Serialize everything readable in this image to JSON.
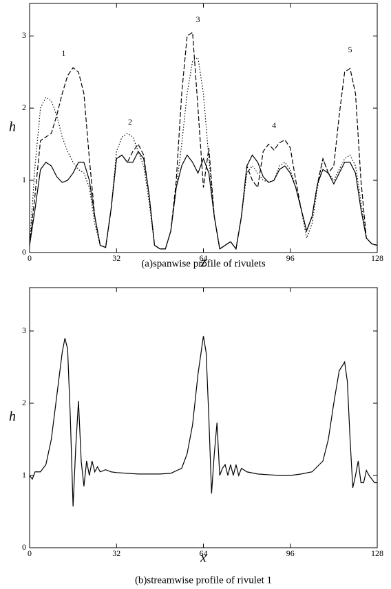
{
  "chart_data": [
    {
      "type": "line",
      "title": "(a)spanwise profile of rivulets",
      "xlabel": "z",
      "ylabel": "h",
      "xlim": [
        0,
        128
      ],
      "xticks": [
        0,
        32,
        64,
        96,
        128
      ],
      "ylim": [
        0,
        3.45
      ],
      "yticks": [
        0,
        1,
        2,
        3
      ],
      "x": [
        0,
        2,
        4,
        6,
        8,
        10,
        12,
        14,
        16,
        18,
        20,
        22,
        24,
        26,
        28,
        30,
        32,
        34,
        36,
        38,
        40,
        42,
        44,
        46,
        48,
        50,
        52,
        54,
        56,
        58,
        60,
        62,
        64,
        66,
        68,
        70,
        72,
        74,
        76,
        78,
        80,
        82,
        84,
        86,
        88,
        90,
        92,
        94,
        96,
        98,
        100,
        102,
        104,
        106,
        108,
        110,
        112,
        114,
        116,
        118,
        120,
        122,
        124,
        126,
        128
      ],
      "series": [
        {
          "color": "#000000",
          "dash": "solid",
          "values": [
            0.1,
            0.6,
            1.15,
            1.25,
            1.2,
            1.05,
            0.97,
            1.0,
            1.1,
            1.25,
            1.25,
            1.0,
            0.5,
            0.1,
            0.07,
            0.6,
            1.3,
            1.35,
            1.25,
            1.25,
            1.4,
            1.3,
            0.8,
            0.1,
            0.05,
            0.05,
            0.3,
            0.9,
            1.2,
            1.35,
            1.25,
            1.1,
            1.3,
            1.1,
            0.5,
            0.05,
            0.1,
            0.15,
            0.05,
            0.5,
            1.2,
            1.35,
            1.25,
            1.05,
            0.97,
            1.0,
            1.15,
            1.2,
            1.1,
            0.9,
            0.6,
            0.3,
            0.5,
            0.95,
            1.15,
            1.1,
            0.95,
            1.1,
            1.25,
            1.25,
            1.1,
            0.6,
            0.2,
            0.12,
            0.1
          ]
        },
        {
          "color": "#000000",
          "dash": "dashed",
          "values": [
            0.1,
            0.8,
            1.55,
            1.6,
            1.65,
            1.9,
            2.2,
            2.45,
            2.56,
            2.5,
            2.2,
            1.3,
            0.5,
            0.1,
            0.07,
            0.6,
            1.3,
            1.35,
            1.25,
            1.4,
            1.5,
            1.35,
            0.8,
            0.1,
            0.05,
            0.05,
            0.3,
            1.0,
            2.2,
            3.0,
            3.05,
            2.0,
            0.9,
            1.45,
            0.5,
            0.05,
            0.1,
            0.15,
            0.05,
            0.5,
            1.2,
            1.0,
            0.9,
            1.4,
            1.5,
            1.42,
            1.52,
            1.56,
            1.45,
            1.0,
            0.6,
            0.3,
            0.5,
            0.95,
            1.3,
            1.1,
            1.2,
            1.9,
            2.5,
            2.55,
            2.2,
            1.0,
            0.2,
            0.12,
            0.1
          ]
        },
        {
          "color": "#000000",
          "dash": "dotted",
          "values": [
            0.1,
            1.2,
            2.0,
            2.15,
            2.1,
            1.9,
            1.6,
            1.4,
            1.25,
            1.15,
            1.1,
            0.9,
            0.4,
            0.1,
            0.07,
            0.6,
            1.4,
            1.6,
            1.65,
            1.6,
            1.4,
            1.2,
            0.7,
            0.1,
            0.05,
            0.05,
            0.3,
            0.9,
            1.5,
            2.2,
            2.65,
            2.7,
            2.2,
            1.3,
            0.5,
            0.05,
            0.1,
            0.15,
            0.05,
            0.5,
            1.1,
            1.2,
            1.1,
            1.0,
            0.98,
            1.0,
            1.2,
            1.25,
            1.15,
            0.9,
            0.6,
            0.2,
            0.4,
            0.9,
            1.3,
            1.1,
            1.0,
            1.15,
            1.3,
            1.35,
            1.2,
            0.7,
            0.2,
            0.12,
            0.1
          ]
        }
      ],
      "annotations": [
        {
          "text": "1",
          "x": 12.5,
          "y": 2.75
        },
        {
          "text": "2",
          "x": 37,
          "y": 1.8
        },
        {
          "text": "3",
          "x": 62,
          "y": 3.22
        },
        {
          "text": "4",
          "x": 90,
          "y": 1.75
        },
        {
          "text": "5",
          "x": 118,
          "y": 2.8
        }
      ]
    },
    {
      "type": "line",
      "title": "(b)streamwise profile of rivulet 1",
      "xlabel": "x",
      "ylabel": "h",
      "xlim": [
        0,
        128
      ],
      "xticks": [
        0,
        32,
        64,
        96,
        128
      ],
      "ylim": [
        0,
        3.6
      ],
      "yticks": [
        0,
        1,
        2,
        3
      ],
      "x": [
        0,
        1,
        2,
        4,
        6,
        8,
        10,
        12,
        13,
        14,
        15,
        16,
        17,
        18,
        19,
        20,
        21,
        22,
        23,
        24,
        25,
        26,
        28,
        30,
        32,
        36,
        40,
        44,
        48,
        52,
        56,
        58,
        60,
        62,
        64,
        65,
        66,
        67,
        68,
        69,
        70,
        71,
        72,
        73,
        74,
        75,
        76,
        77,
        78,
        80,
        84,
        88,
        92,
        96,
        100,
        104,
        108,
        110,
        112,
        114,
        116,
        117,
        118,
        119,
        120,
        121,
        122,
        123,
        124,
        125,
        126,
        127,
        128
      ],
      "series": [
        {
          "color": "#000000",
          "dash": "solid",
          "values": [
            1.0,
            0.95,
            1.05,
            1.05,
            1.15,
            1.5,
            2.1,
            2.7,
            2.9,
            2.75,
            1.8,
            0.57,
            1.4,
            2.03,
            1.2,
            0.85,
            1.2,
            1.0,
            1.2,
            1.05,
            1.12,
            1.05,
            1.08,
            1.05,
            1.04,
            1.03,
            1.02,
            1.02,
            1.02,
            1.03,
            1.1,
            1.3,
            1.7,
            2.4,
            2.93,
            2.7,
            1.8,
            0.75,
            1.3,
            1.73,
            1.0,
            1.1,
            1.15,
            1.0,
            1.15,
            1.0,
            1.15,
            1.0,
            1.1,
            1.05,
            1.02,
            1.01,
            1.0,
            1.0,
            1.02,
            1.05,
            1.2,
            1.5,
            2.0,
            2.45,
            2.57,
            2.3,
            1.5,
            0.83,
            1.0,
            1.2,
            0.9,
            0.9,
            1.07,
            1.0,
            0.95,
            0.9,
            0.9
          ]
        }
      ]
    }
  ]
}
